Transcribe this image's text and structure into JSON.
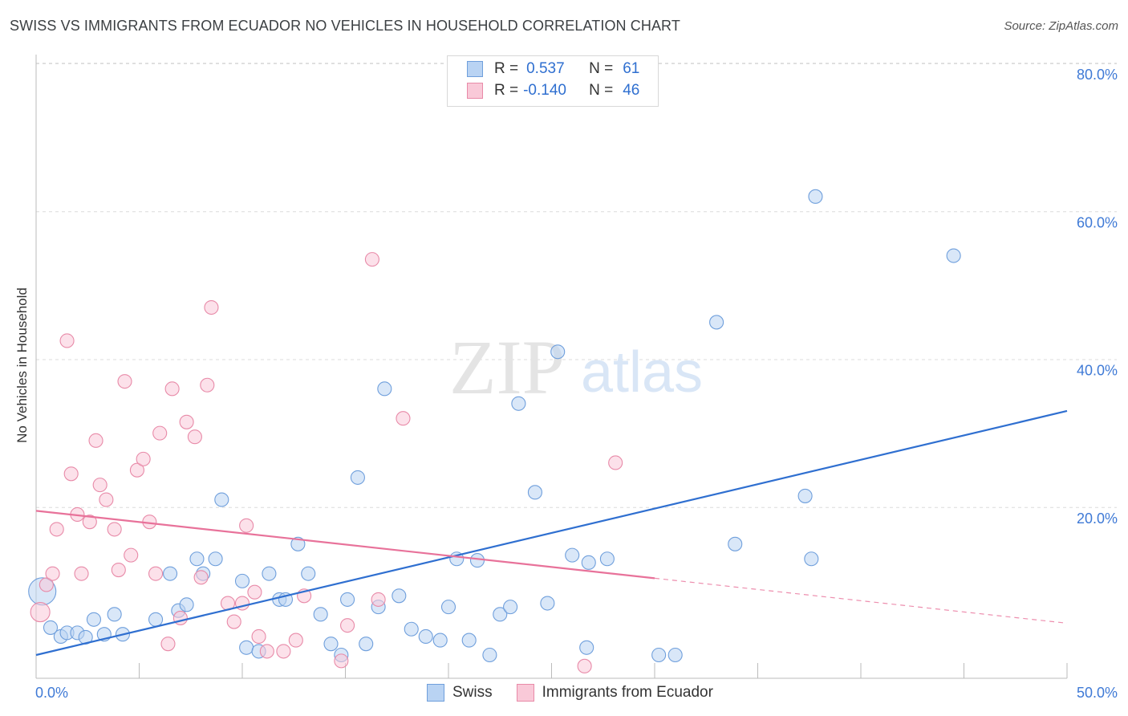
{
  "title": "SWISS VS IMMIGRANTS FROM ECUADOR NO VEHICLES IN HOUSEHOLD CORRELATION CHART",
  "source": "Source: ZipAtlas.com",
  "watermark": {
    "zip": "ZIP",
    "atlas": "atlas"
  },
  "legend": {
    "rows": [
      {
        "r_label": "R =",
        "r_value": "0.537",
        "n_label": "N =",
        "n_value": "61",
        "color": "#b9d3f3",
        "border": "#6f9fdc"
      },
      {
        "r_label": "R =",
        "r_value": "-0.140",
        "n_label": "N =",
        "n_value": "46",
        "color": "#f9c9d8",
        "border": "#e88aa8"
      }
    ]
  },
  "bottom_legend": {
    "series1": "Swiss",
    "series2": "Immigrants from Ecuador"
  },
  "chart_data": {
    "type": "scatter",
    "xlabel": "",
    "ylabel": "No Vehicles in Household",
    "xlim": [
      0,
      50
    ],
    "ylim": [
      0,
      80
    ],
    "x_tick_labels": [
      "0.0%",
      "50.0%"
    ],
    "y_tick_labels": [
      "20.0%",
      "40.0%",
      "60.0%",
      "80.0%"
    ],
    "y_ticks": [
      20,
      40,
      60,
      80
    ],
    "grid": true,
    "legend_position": "top-center",
    "series": [
      {
        "name": "Swiss",
        "color": "#6f9fdc",
        "fill": "#b9d3f3",
        "line_color": "#2f6fd0",
        "trend": {
          "x0": 0,
          "y0": 0.0,
          "x1": 50,
          "y1": 33.0,
          "dash_from": 50
        },
        "points": [
          [
            0.3,
            8.6,
            3
          ],
          [
            0.7,
            3.7,
            1
          ],
          [
            1.2,
            2.5,
            1
          ],
          [
            1.5,
            3.0,
            1
          ],
          [
            2.0,
            3.0,
            1
          ],
          [
            2.4,
            2.4,
            1
          ],
          [
            2.8,
            4.8,
            1
          ],
          [
            3.3,
            2.8,
            1
          ],
          [
            3.8,
            5.5,
            1
          ],
          [
            4.2,
            2.8,
            1
          ],
          [
            5.8,
            4.8,
            1
          ],
          [
            6.5,
            11.0,
            1
          ],
          [
            6.9,
            6.0,
            1
          ],
          [
            7.3,
            6.8,
            1
          ],
          [
            7.8,
            13.0,
            1
          ],
          [
            8.1,
            11.0,
            1
          ],
          [
            8.7,
            13.0,
            1
          ],
          [
            9.0,
            21.0,
            1
          ],
          [
            10.0,
            10.0,
            1
          ],
          [
            10.2,
            1.0,
            1
          ],
          [
            10.8,
            0.5,
            1
          ],
          [
            11.3,
            11.0,
            1
          ],
          [
            11.8,
            7.5,
            1
          ],
          [
            12.1,
            7.5,
            1
          ],
          [
            12.7,
            15.0,
            1
          ],
          [
            13.2,
            11.0,
            1
          ],
          [
            13.8,
            5.5,
            1
          ],
          [
            14.3,
            1.5,
            1
          ],
          [
            14.8,
            0.0,
            1
          ],
          [
            15.1,
            7.5,
            1
          ],
          [
            15.6,
            24.0,
            1
          ],
          [
            16.0,
            1.5,
            1
          ],
          [
            16.6,
            6.5,
            1
          ],
          [
            16.9,
            36.0,
            1
          ],
          [
            17.6,
            8.0,
            1
          ],
          [
            18.2,
            3.5,
            1
          ],
          [
            18.9,
            2.5,
            1
          ],
          [
            19.6,
            2.0,
            1
          ],
          [
            20.0,
            6.5,
            1
          ],
          [
            20.4,
            13.0,
            1
          ],
          [
            21.0,
            2.0,
            1
          ],
          [
            21.4,
            12.8,
            1
          ],
          [
            22.0,
            0.0,
            1
          ],
          [
            22.5,
            5.5,
            1
          ],
          [
            23.0,
            6.5,
            1
          ],
          [
            23.4,
            34.0,
            1
          ],
          [
            24.2,
            22.0,
            1
          ],
          [
            24.8,
            7.0,
            1
          ],
          [
            25.3,
            41.0,
            1
          ],
          [
            26.0,
            13.5,
            1
          ],
          [
            26.8,
            12.5,
            1
          ],
          [
            26.7,
            1.0,
            1
          ],
          [
            27.7,
            13.0,
            1
          ],
          [
            30.2,
            0.0,
            1
          ],
          [
            31.0,
            0.0,
            1
          ],
          [
            33.0,
            45.0,
            1
          ],
          [
            33.9,
            15.0,
            1
          ],
          [
            37.8,
            62.0,
            1
          ],
          [
            37.3,
            21.5,
            1
          ],
          [
            37.6,
            13.0,
            1
          ],
          [
            44.5,
            54.0,
            1
          ]
        ]
      },
      {
        "name": "Immigrants from Ecuador",
        "color": "#e88aa8",
        "fill": "#f9c9d8",
        "line_color": "#e8729a",
        "trend": {
          "x0": 0,
          "y0": 19.5,
          "x1": 50,
          "y1": 4.3,
          "dash_from": 30
        },
        "points": [
          [
            0.2,
            5.8,
            2
          ],
          [
            0.5,
            9.5,
            1
          ],
          [
            0.8,
            11.0,
            1
          ],
          [
            1.0,
            17.0,
            1
          ],
          [
            1.5,
            42.5,
            1
          ],
          [
            1.7,
            24.5,
            1
          ],
          [
            2.0,
            19.0,
            1
          ],
          [
            2.2,
            11.0,
            1
          ],
          [
            2.6,
            18.0,
            1
          ],
          [
            2.9,
            29.0,
            1
          ],
          [
            3.1,
            23.0,
            1
          ],
          [
            3.4,
            21.0,
            1
          ],
          [
            3.8,
            17.0,
            1
          ],
          [
            4.0,
            11.5,
            1
          ],
          [
            4.3,
            37.0,
            1
          ],
          [
            4.6,
            13.5,
            1
          ],
          [
            4.9,
            25.0,
            1
          ],
          [
            5.2,
            26.5,
            1
          ],
          [
            5.5,
            18.0,
            1
          ],
          [
            5.8,
            11.0,
            1
          ],
          [
            6.0,
            30.0,
            1
          ],
          [
            6.4,
            1.5,
            1
          ],
          [
            6.6,
            36.0,
            1
          ],
          [
            7.0,
            5.0,
            1
          ],
          [
            7.3,
            31.5,
            1
          ],
          [
            7.7,
            29.5,
            1
          ],
          [
            8.0,
            10.5,
            1
          ],
          [
            8.3,
            36.5,
            1
          ],
          [
            8.5,
            47.0,
            1
          ],
          [
            9.3,
            7.0,
            1
          ],
          [
            9.6,
            4.5,
            1
          ],
          [
            10.0,
            7.0,
            1
          ],
          [
            10.2,
            17.5,
            1
          ],
          [
            10.6,
            8.5,
            1
          ],
          [
            10.8,
            2.5,
            1
          ],
          [
            11.2,
            0.5,
            1
          ],
          [
            12.0,
            0.5,
            1
          ],
          [
            12.6,
            2.0,
            1
          ],
          [
            13.0,
            8.0,
            1
          ],
          [
            14.8,
            -0.8,
            1
          ],
          [
            15.1,
            4.0,
            1
          ],
          [
            16.3,
            53.5,
            1
          ],
          [
            16.6,
            7.5,
            1
          ],
          [
            17.8,
            32.0,
            1
          ],
          [
            26.6,
            -1.5,
            1
          ],
          [
            28.1,
            26.0,
            1
          ]
        ]
      }
    ]
  }
}
